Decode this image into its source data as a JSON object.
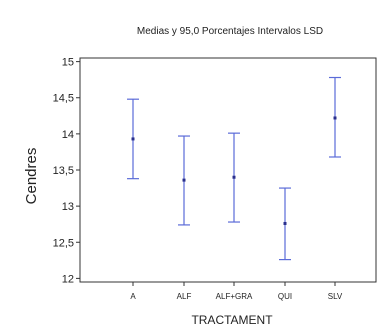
{
  "chart_data": {
    "type": "interval",
    "title": "Medias y 95,0 Porcentajes Intervalos LSD",
    "xlabel": "TRACTAMENT",
    "ylabel": "Cendres",
    "categories": [
      "A",
      "ALF",
      "ALF+GRA",
      "QUI",
      "SLV"
    ],
    "means": [
      13.93,
      13.36,
      13.4,
      12.76,
      14.22
    ],
    "lower": [
      13.38,
      12.74,
      12.78,
      12.26,
      13.68
    ],
    "upper": [
      14.48,
      13.97,
      14.01,
      13.25,
      14.78
    ],
    "ylim": [
      11.95,
      15.05
    ],
    "yticks": [
      "12",
      "12,5",
      "13",
      "13,5",
      "14",
      "14,5",
      "15"
    ],
    "ytick_values": [
      12,
      12.5,
      13,
      13.5,
      14,
      14.5,
      15
    ],
    "grid": false,
    "colors": {
      "interval": "#5b6bd8",
      "mean": "#2a2f8c",
      "axis": "#333333"
    }
  }
}
